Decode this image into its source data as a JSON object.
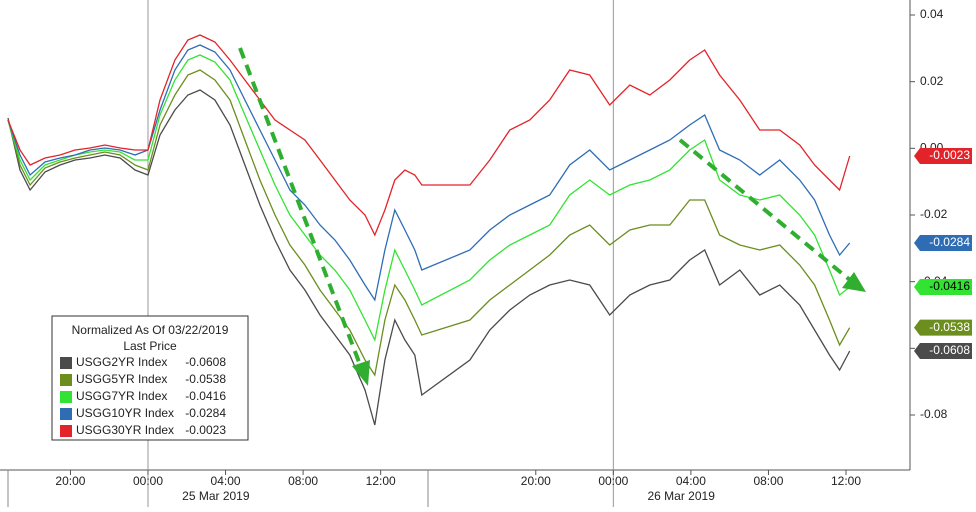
{
  "chart_data": {
    "type": "line",
    "legend_title": "Normalized As Of 03/22/2019",
    "legend_subtitle": "Last Price",
    "x": [
      -7.22,
      -6.6,
      -6.08,
      -5.31,
      -4.54,
      -3.76,
      -2.99,
      -2.22,
      -1.44,
      -0.67,
      0,
      0.62,
      1.39,
      2.06,
      2.68,
      3.45,
      4.23,
      5.0,
      5.77,
      6.55,
      7.32,
      8.09,
      8.87,
      9.64,
      10.41,
      11.19,
      11.7,
      12.22,
      12.73,
      13.25,
      13.76,
      14.12,
      16.6,
      17.63,
      18.66,
      19.69,
      20.72,
      21.75,
      22.78,
      23.81,
      24.85,
      25.88,
      26.91,
      27.94,
      28.71,
      29.48,
      30.52,
      31.55,
      32.58,
      33.61,
      34.38,
      35.15,
      35.67,
      36.19
    ],
    "series": [
      {
        "name": "USGG2YR Index",
        "color": "#4b4b4b",
        "values": [
          0.0091,
          -0.0065,
          -0.0125,
          -0.0071,
          -0.005,
          -0.0035,
          -0.0029,
          -0.002,
          -0.0029,
          -0.0065,
          -0.008,
          0.004,
          0.0115,
          0.016,
          0.0175,
          0.0145,
          0.007,
          -0.005,
          -0.017,
          -0.0275,
          -0.0365,
          -0.0425,
          -0.05,
          -0.056,
          -0.062,
          -0.0725,
          -0.083,
          -0.0635,
          -0.0515,
          -0.0575,
          -0.062,
          -0.074,
          -0.0635,
          -0.0545,
          -0.0485,
          -0.044,
          -0.041,
          -0.0395,
          -0.041,
          -0.05,
          -0.044,
          -0.041,
          -0.0395,
          -0.0335,
          -0.0305,
          -0.041,
          -0.0365,
          -0.044,
          -0.041,
          -0.047,
          -0.0545,
          -0.062,
          -0.0665,
          -0.0608
        ]
      },
      {
        "name": "USGG5YR Index",
        "color": "#6b8e1e",
        "values": [
          0.0085,
          -0.005,
          -0.011,
          -0.0059,
          -0.0041,
          -0.0029,
          -0.002,
          -0.0011,
          -0.002,
          -0.005,
          -0.0065,
          0.007,
          0.016,
          0.022,
          0.0235,
          0.0205,
          0.0145,
          0.0025,
          -0.0095,
          -0.02,
          -0.029,
          -0.035,
          -0.0425,
          -0.0485,
          -0.0545,
          -0.0635,
          -0.068,
          -0.0515,
          -0.041,
          -0.0455,
          -0.0515,
          -0.056,
          -0.0515,
          -0.0455,
          -0.041,
          -0.0365,
          -0.032,
          -0.026,
          -0.023,
          -0.029,
          -0.0245,
          -0.023,
          -0.023,
          -0.0155,
          -0.0155,
          -0.026,
          -0.029,
          -0.0305,
          -0.029,
          -0.035,
          -0.041,
          -0.0515,
          -0.059,
          -0.0538
        ]
      },
      {
        "name": "USGG7YR Index",
        "color": "#33e333",
        "values": [
          0.0085,
          -0.0035,
          -0.0095,
          -0.005,
          -0.0035,
          -0.002,
          -0.0011,
          -0.0005,
          -0.0011,
          -0.0035,
          -0.0035,
          0.01,
          0.0205,
          0.0265,
          0.028,
          0.0259,
          0.0205,
          0.01,
          -0.0005,
          -0.011,
          -0.02,
          -0.026,
          -0.032,
          -0.0365,
          -0.0425,
          -0.0515,
          -0.0575,
          -0.0425,
          -0.0305,
          -0.0365,
          -0.0425,
          -0.047,
          -0.0395,
          -0.0335,
          -0.029,
          -0.026,
          -0.023,
          -0.014,
          -0.0095,
          -0.014,
          -0.011,
          -0.0095,
          -0.0065,
          -0.0005,
          0.0025,
          -0.0095,
          -0.014,
          -0.0155,
          -0.014,
          -0.02,
          -0.026,
          -0.0365,
          -0.044,
          -0.0416
        ]
      },
      {
        "name": "USGG10YR Index",
        "color": "#2e6db4",
        "values": [
          0.0085,
          -0.002,
          -0.008,
          -0.0041,
          -0.0029,
          -0.002,
          -0.0005,
          0.0001,
          -0.0005,
          -0.002,
          -0.0005,
          0.0115,
          0.0235,
          0.0295,
          0.031,
          0.0289,
          0.0235,
          0.0145,
          0.0055,
          -0.0035,
          -0.0125,
          -0.017,
          -0.023,
          -0.0275,
          -0.0335,
          -0.041,
          -0.0455,
          -0.0305,
          -0.0185,
          -0.0245,
          -0.0305,
          -0.0365,
          -0.0305,
          -0.0245,
          -0.02,
          -0.017,
          -0.014,
          -0.005,
          -0.0005,
          -0.0065,
          -0.0035,
          -0.0005,
          0.0025,
          0.007,
          0.01,
          -0.0005,
          -0.0035,
          -0.008,
          -0.0035,
          -0.0095,
          -0.0155,
          -0.026,
          -0.032,
          -0.0284
        ]
      },
      {
        "name": "USGG30YR Index",
        "color": "#e2242a",
        "values": [
          0.0085,
          -0.0005,
          -0.005,
          -0.0029,
          -0.002,
          -0.0005,
          0.0001,
          0.001,
          0.0001,
          -0.0005,
          -0.0005,
          0.0145,
          0.0265,
          0.0325,
          0.034,
          0.0319,
          0.0265,
          0.0205,
          0.0145,
          0.0085,
          0.0055,
          0.0025,
          -0.0035,
          -0.0095,
          -0.0155,
          -0.02,
          -0.026,
          -0.0185,
          -0.0095,
          -0.0065,
          -0.008,
          -0.011,
          -0.011,
          -0.0035,
          0.0055,
          0.0085,
          0.0145,
          0.0235,
          0.022,
          0.013,
          0.019,
          0.016,
          0.0205,
          0.0265,
          0.0295,
          0.022,
          0.0145,
          0.0055,
          0.0055,
          0.001,
          -0.005,
          -0.0095,
          -0.0125,
          -0.0023
        ]
      }
    ],
    "xlim": [
      -7.22,
      39.3
    ],
    "xticks": [
      {
        "value": -4,
        "label": "20:00"
      },
      {
        "value": 0,
        "label": "00:00"
      },
      {
        "value": 4,
        "label": "04:00"
      },
      {
        "value": 8,
        "label": "08:00"
      },
      {
        "value": 12,
        "label": "12:00"
      },
      {
        "value": 20,
        "label": "20:00"
      },
      {
        "value": 24,
        "label": "00:00"
      },
      {
        "value": 28,
        "label": "04:00"
      },
      {
        "value": 32,
        "label": "08:00"
      },
      {
        "value": 36,
        "label": "12:00"
      }
    ],
    "date_labels": [
      {
        "value": 3.5,
        "label": "25 Mar 2019"
      },
      {
        "value": 27.5,
        "label": "26 Mar 2019"
      }
    ],
    "day_breaks": [
      0,
      24
    ],
    "ylim": [
      -0.0965,
      0.0445
    ],
    "yticks": [
      0.04,
      0.02,
      {
        "value": 0,
        "label": "0.00"
      },
      -0.02,
      -0.04,
      -0.06,
      -0.08
    ]
  }
}
